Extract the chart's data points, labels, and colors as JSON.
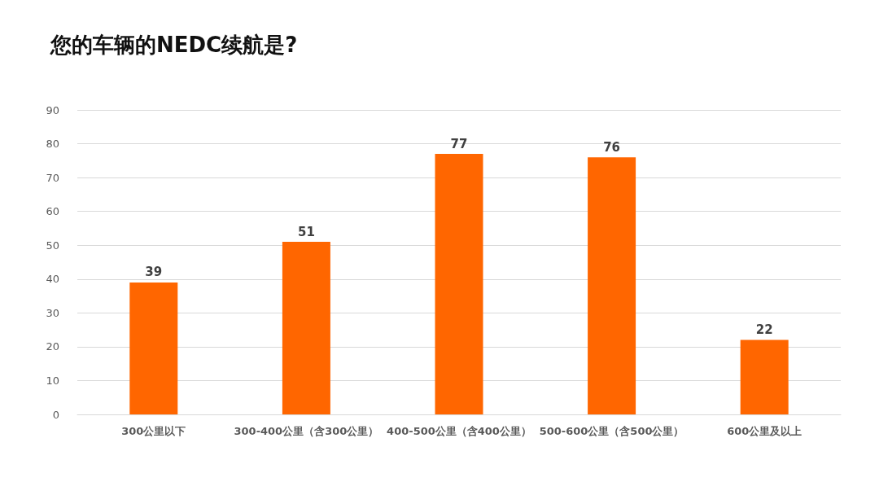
{
  "chart_data": {
    "type": "bar",
    "title": "您的车辆的NEDC续航是?",
    "categories": [
      "300公里以下",
      "300-400公里（含300公里）",
      "400-500公里（含400公里）",
      "500-600公里（含500公里）",
      "600公里及以上"
    ],
    "values": [
      39,
      51,
      77,
      76,
      22
    ],
    "color": "#ff6600",
    "ylim": [
      0,
      90
    ],
    "yticks": [
      0,
      10,
      20,
      30,
      40,
      50,
      60,
      70,
      80,
      90
    ],
    "grid": "y",
    "data_labels": true
  }
}
